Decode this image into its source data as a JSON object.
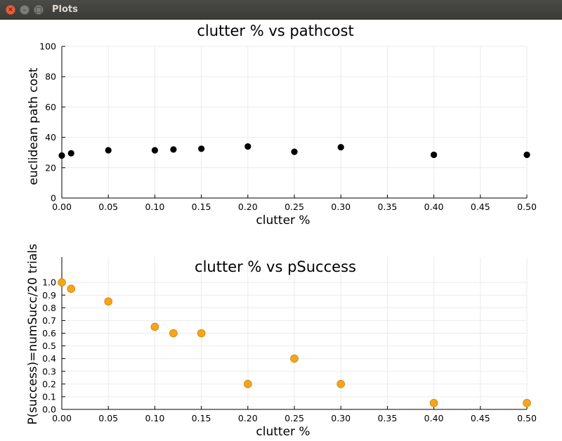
{
  "window": {
    "title": "Plots"
  },
  "chart_data": [
    {
      "type": "scatter",
      "title": "clutter % vs pathcost",
      "xlabel": "clutter %",
      "ylabel": "euclidean path cost",
      "xlim": [
        0.0,
        0.5
      ],
      "ylim": [
        0,
        100
      ],
      "xticks": [
        "0.00",
        "0.05",
        "0.10",
        "0.15",
        "0.20",
        "0.25",
        "0.30",
        "0.35",
        "0.40",
        "0.45",
        "0.50"
      ],
      "yticks": [
        "0",
        "20",
        "40",
        "60",
        "80",
        "100"
      ],
      "grid": true,
      "color": "#000000",
      "x": [
        0.0,
        0.01,
        0.05,
        0.1,
        0.12,
        0.15,
        0.2,
        0.25,
        0.3,
        0.4,
        0.5
      ],
      "y": [
        28,
        29.5,
        31.5,
        31.5,
        32,
        32.5,
        34,
        30.5,
        33.5,
        28.5,
        28.5
      ]
    },
    {
      "type": "scatter",
      "title": "clutter % vs pSuccess",
      "xlabel": "clutter %",
      "ylabel": "P(success)=numSucc/20 trials",
      "xlim": [
        0.0,
        0.5
      ],
      "ylim": [
        0,
        1.2
      ],
      "xticks": [
        "0.00",
        "0.05",
        "0.10",
        "0.15",
        "0.20",
        "0.25",
        "0.30",
        "0.35",
        "0.40",
        "0.45",
        "0.50"
      ],
      "yticks": [
        "0.0",
        "0.1",
        "0.2",
        "0.3",
        "0.4",
        "0.5",
        "0.6",
        "0.7",
        "0.8",
        "0.9",
        "1.0"
      ],
      "grid": true,
      "color": "#f5a41b",
      "x": [
        0.0,
        0.01,
        0.05,
        0.1,
        0.12,
        0.15,
        0.2,
        0.25,
        0.3,
        0.4,
        0.5
      ],
      "y": [
        1.0,
        0.95,
        0.85,
        0.65,
        0.6,
        0.6,
        0.2,
        0.4,
        0.2,
        0.05,
        0.05
      ]
    }
  ]
}
